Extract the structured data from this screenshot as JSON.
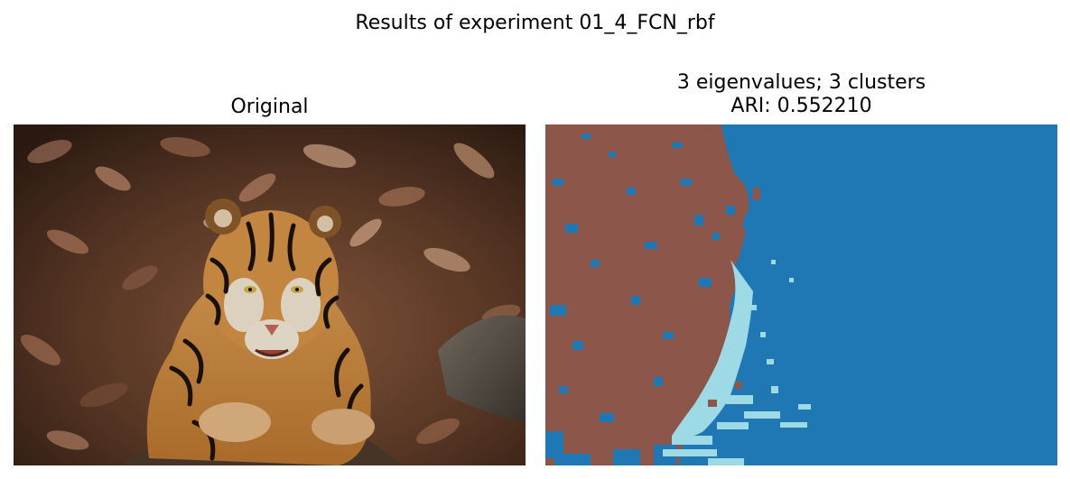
{
  "figure": {
    "suptitle": "Results of experiment 01_4_FCN_rbf"
  },
  "panels": [
    {
      "title": "Original",
      "content": "photo of a tiger lying on dry leaves and rocks"
    },
    {
      "title_line1": "3 eigenvalues; 3 clusters",
      "title_line2": "ARI: 0.552210",
      "content": "segmentation map with 3 clusters"
    }
  ],
  "colors": {
    "cluster_a": "#8c564b",
    "cluster_b": "#1f77b4",
    "cluster_c": "#9edae5"
  }
}
